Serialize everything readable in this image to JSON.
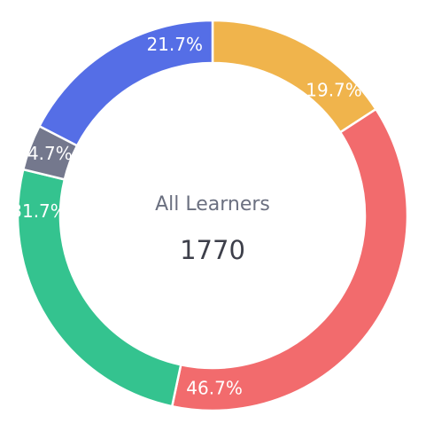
{
  "chart_data": {
    "type": "pie",
    "variant": "donut",
    "center_label": "All Learners",
    "center_value": "1770",
    "slices": [
      {
        "label": "19.7%",
        "value": 19.7,
        "color": "#f0b44c"
      },
      {
        "label": "46.7%",
        "value": 46.7,
        "color": "#f26b6d"
      },
      {
        "label": "31.7%",
        "value": 31.7,
        "color": "#34c38f"
      },
      {
        "label": "4.7%",
        "value": 4.7,
        "color": "#74788d"
      },
      {
        "label": "21.7%",
        "value": 21.7,
        "color": "#556ee6"
      }
    ]
  }
}
